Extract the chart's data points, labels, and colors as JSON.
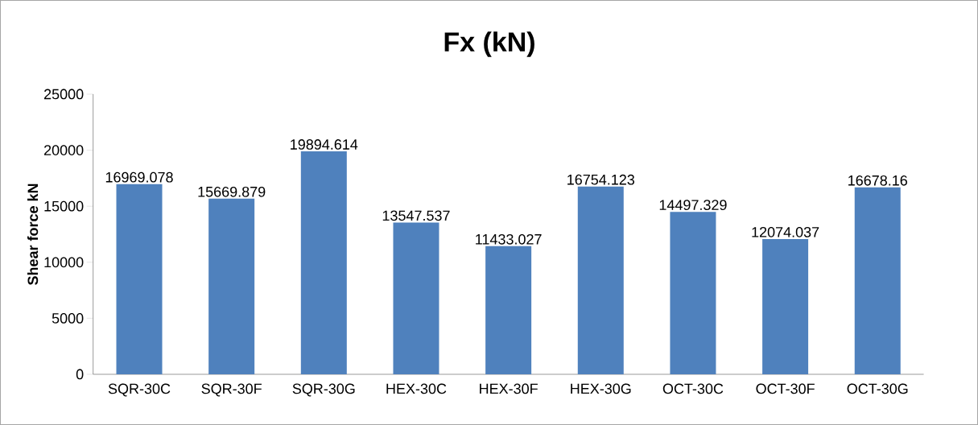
{
  "chart_data": {
    "type": "bar",
    "title": "Fx (kN)",
    "ylabel": "Shear force kN",
    "categories": [
      "SQR-30C",
      "SQR-30F",
      "SQR-30G",
      "HEX-30C",
      "HEX-30F",
      "HEX-30G",
      "OCT-30C",
      "OCT-30F",
      "OCT-30G"
    ],
    "values": [
      16969.078,
      15669.879,
      19894.614,
      13547.537,
      11433.027,
      16754.123,
      14497.329,
      12074.037,
      16678.16
    ],
    "color": "#4f81bd",
    "ylim": [
      0,
      25000
    ],
    "yticks": [
      0,
      5000,
      10000,
      15000,
      20000,
      25000
    ],
    "data_labels": true
  }
}
